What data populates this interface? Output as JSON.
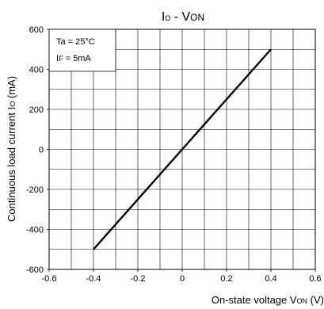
{
  "chart_data": {
    "type": "line",
    "title": {
      "main": "I",
      "sub1": "O",
      "sep": " - V",
      "sub2": "ON"
    },
    "xlabel": {
      "main": "On-state voltage V",
      "sub": "ON",
      "unit": " (V)"
    },
    "ylabel": {
      "main": "Continuous load current I",
      "sub": "O",
      "unit": " (mA)"
    },
    "xlim": [
      -0.6,
      0.6
    ],
    "ylim": [
      -600,
      600
    ],
    "x_ticks": [
      "-0.6",
      "-0.4",
      "-0.2",
      "0",
      "0.2",
      "0.4",
      "0.6"
    ],
    "y_ticks": [
      "600",
      "400",
      "200",
      "0",
      "-200",
      "-400",
      "-600"
    ],
    "grid": true,
    "annotation": {
      "line1": "Ta = 25°C",
      "line2_main": "I",
      "line2_sub": "F",
      "line2_rest": " = 5mA"
    },
    "series": [
      {
        "x": [
          -0.4,
          0,
          0.4
        ],
        "y": [
          -500,
          0,
          500
        ]
      }
    ]
  }
}
